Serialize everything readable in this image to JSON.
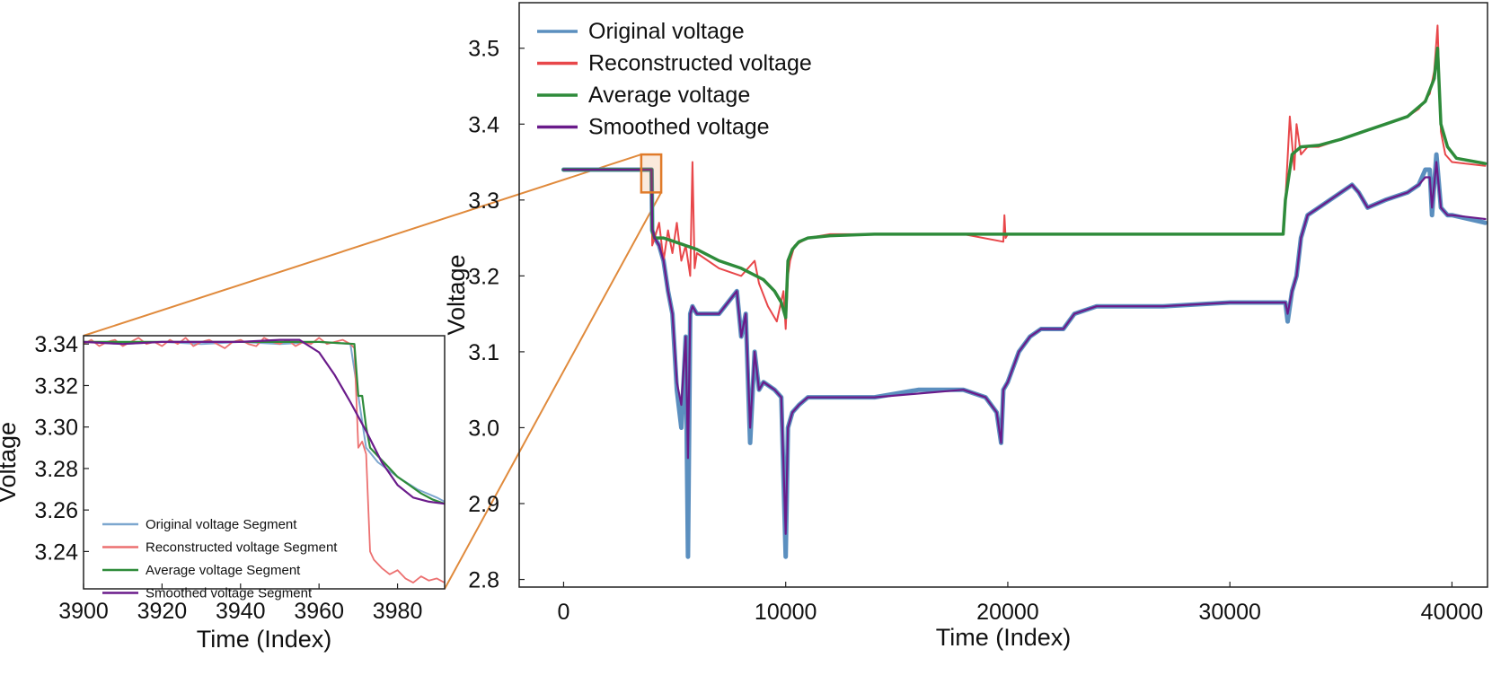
{
  "chart_data": [
    {
      "name": "main",
      "type": "line",
      "xlabel": "Time (Index)",
      "ylabel": "Voltage",
      "xlim": [
        -2000,
        41600
      ],
      "ylim": [
        2.79,
        3.56
      ],
      "xticks": [
        0,
        10000,
        20000,
        30000,
        40000
      ],
      "xtick_labels": [
        "0",
        "10000",
        "20000",
        "30000",
        "40000"
      ],
      "yticks": [
        2.8,
        2.9,
        3.0,
        3.1,
        3.2,
        3.3,
        3.4,
        3.5
      ],
      "ytick_labels": [
        "2.8",
        "2.9",
        "3.0",
        "3.1",
        "3.2",
        "3.3",
        "3.4",
        "3.5"
      ],
      "legend_position": "top-left",
      "highlight_region": {
        "x": [
          3900,
          3990
        ],
        "y": [
          3.31,
          3.36
        ]
      },
      "series": [
        {
          "name": "Original voltage",
          "color": "#5b8fbf",
          "x": [
            0,
            3900,
            3960,
            3990,
            4100,
            4300,
            4500,
            4700,
            4900,
            5100,
            5300,
            5500,
            5600,
            5700,
            5800,
            6000,
            7000,
            7800,
            8000,
            8200,
            8400,
            8600,
            8800,
            9000,
            9500,
            9800,
            10000,
            10100,
            10300,
            10600,
            11000,
            12000,
            14000,
            16000,
            18000,
            19000,
            19500,
            19700,
            19800,
            20000,
            20500,
            21000,
            21500,
            22500,
            23000,
            24000,
            25000,
            27000,
            30000,
            32500,
            32600,
            32800,
            33000,
            33200,
            33500,
            34000,
            35000,
            35500,
            35800,
            36200,
            37000,
            38000,
            38500,
            38800,
            39000,
            39100,
            39300,
            39500,
            39800,
            40000,
            41500
          ],
          "y": [
            3.34,
            3.34,
            3.34,
            3.26,
            3.25,
            3.24,
            3.22,
            3.18,
            3.15,
            3.05,
            3.0,
            3.12,
            2.83,
            3.15,
            3.16,
            3.15,
            3.15,
            3.18,
            3.12,
            3.15,
            2.98,
            3.1,
            3.05,
            3.06,
            3.05,
            3.04,
            2.83,
            3.0,
            3.02,
            3.03,
            3.04,
            3.04,
            3.04,
            3.05,
            3.05,
            3.04,
            3.02,
            2.98,
            3.05,
            3.06,
            3.1,
            3.12,
            3.13,
            3.13,
            3.15,
            3.16,
            3.16,
            3.16,
            3.165,
            3.165,
            3.14,
            3.18,
            3.2,
            3.25,
            3.28,
            3.29,
            3.31,
            3.32,
            3.31,
            3.29,
            3.3,
            3.31,
            3.32,
            3.34,
            3.34,
            3.28,
            3.36,
            3.29,
            3.28,
            3.28,
            3.27
          ]
        },
        {
          "name": "Reconstructed voltage",
          "color": "#e8474a",
          "x": [
            0,
            3900,
            3970,
            3990,
            4100,
            4300,
            4500,
            4700,
            4900,
            5100,
            5300,
            5500,
            5700,
            5800,
            5900,
            6000,
            7000,
            8000,
            8600,
            8800,
            9200,
            9600,
            9900,
            10000,
            10100,
            10200,
            10400,
            11000,
            12000,
            14000,
            16000,
            18000,
            19800,
            19850,
            19900,
            20000,
            22000,
            25000,
            30000,
            32400,
            32500,
            32700,
            32900,
            33000,
            33200,
            33500,
            34000,
            35000,
            36000,
            37000,
            38000,
            38500,
            39000,
            39200,
            39350,
            39500,
            39700,
            40000,
            41500
          ],
          "y": [
            3.34,
            3.34,
            3.34,
            3.24,
            3.25,
            3.27,
            3.22,
            3.26,
            3.23,
            3.27,
            3.22,
            3.24,
            3.2,
            3.35,
            3.21,
            3.23,
            3.21,
            3.2,
            3.22,
            3.19,
            3.16,
            3.14,
            3.18,
            3.13,
            3.2,
            3.22,
            3.24,
            3.25,
            3.255,
            3.255,
            3.255,
            3.255,
            3.245,
            3.28,
            3.25,
            3.255,
            3.255,
            3.255,
            3.255,
            3.255,
            3.3,
            3.41,
            3.34,
            3.4,
            3.36,
            3.37,
            3.37,
            3.38,
            3.39,
            3.4,
            3.41,
            3.42,
            3.44,
            3.47,
            3.53,
            3.39,
            3.36,
            3.35,
            3.345
          ]
        },
        {
          "name": "Average voltage",
          "color": "#2e8b3a",
          "x": [
            0,
            3900,
            3960,
            3990,
            4100,
            4500,
            5000,
            6000,
            7000,
            8000,
            9000,
            9500,
            9800,
            10000,
            10100,
            10300,
            10600,
            11000,
            12000,
            14000,
            16000,
            20000,
            25000,
            30000,
            32400,
            32500,
            32800,
            33200,
            34000,
            35000,
            36000,
            37000,
            38000,
            38800,
            39200,
            39350,
            39500,
            39800,
            40200,
            41500
          ],
          "y": [
            3.34,
            3.34,
            3.34,
            3.26,
            3.25,
            3.25,
            3.245,
            3.235,
            3.22,
            3.21,
            3.195,
            3.18,
            3.165,
            3.145,
            3.22,
            3.235,
            3.245,
            3.25,
            3.253,
            3.255,
            3.255,
            3.255,
            3.255,
            3.255,
            3.255,
            3.3,
            3.36,
            3.37,
            3.372,
            3.38,
            3.39,
            3.4,
            3.41,
            3.43,
            3.46,
            3.5,
            3.4,
            3.37,
            3.355,
            3.348
          ]
        },
        {
          "name": "Smoothed voltage",
          "color": "#6a1b8a",
          "x": [
            0,
            3900,
            3960,
            3990,
            4100,
            4300,
            4500,
            4700,
            4900,
            5100,
            5300,
            5500,
            5600,
            5700,
            5800,
            6000,
            7000,
            7800,
            8000,
            8200,
            8400,
            8600,
            8800,
            9000,
            9500,
            9800,
            10000,
            10100,
            10300,
            10600,
            11000,
            12000,
            14000,
            16000,
            18000,
            19000,
            19500,
            19700,
            19800,
            20000,
            20500,
            21000,
            21500,
            22500,
            23000,
            24000,
            25000,
            27000,
            30000,
            32500,
            32600,
            32800,
            33000,
            33200,
            33500,
            34000,
            35000,
            35500,
            35800,
            36200,
            37000,
            38000,
            38500,
            38800,
            39000,
            39100,
            39300,
            39500,
            39800,
            40000,
            41500
          ],
          "y": [
            3.34,
            3.34,
            3.34,
            3.262,
            3.25,
            3.24,
            3.22,
            3.18,
            3.15,
            3.06,
            3.03,
            3.12,
            2.96,
            3.15,
            3.16,
            3.15,
            3.15,
            3.18,
            3.12,
            3.15,
            3.0,
            3.1,
            3.05,
            3.06,
            3.05,
            3.04,
            2.86,
            3.0,
            3.02,
            3.03,
            3.04,
            3.04,
            3.04,
            3.045,
            3.05,
            3.04,
            3.02,
            2.98,
            3.05,
            3.06,
            3.1,
            3.12,
            3.13,
            3.13,
            3.15,
            3.16,
            3.16,
            3.16,
            3.165,
            3.165,
            3.15,
            3.18,
            3.2,
            3.25,
            3.28,
            3.29,
            3.31,
            3.32,
            3.31,
            3.29,
            3.3,
            3.31,
            3.32,
            3.33,
            3.33,
            3.29,
            3.35,
            3.29,
            3.28,
            3.28,
            3.275
          ]
        }
      ]
    },
    {
      "name": "inset",
      "type": "line",
      "xlabel": "Time (Index)",
      "ylabel": "Voltage",
      "xlim": [
        3900,
        3992
      ],
      "ylim": [
        3.222,
        3.344
      ],
      "xticks": [
        3900,
        3920,
        3940,
        3960,
        3980
      ],
      "xtick_labels": [
        "3900",
        "3920",
        "3940",
        "3960",
        "3980"
      ],
      "yticks": [
        3.24,
        3.26,
        3.28,
        3.3,
        3.32,
        3.34
      ],
      "ytick_labels": [
        "3.24",
        "3.26",
        "3.28",
        "3.30",
        "3.32",
        "3.34"
      ],
      "legend_position": "bottom-left",
      "series": [
        {
          "name": "Original voltage Segment",
          "color": "#7da7cf",
          "x": [
            3900,
            3910,
            3920,
            3930,
            3940,
            3950,
            3960,
            3968,
            3970,
            3972,
            3975,
            3980,
            3985,
            3990,
            3992
          ],
          "y": [
            3.341,
            3.34,
            3.341,
            3.34,
            3.341,
            3.34,
            3.341,
            3.34,
            3.315,
            3.29,
            3.283,
            3.276,
            3.27,
            3.266,
            3.264
          ]
        },
        {
          "name": "Reconstructed voltage Segment",
          "color": "#ec7070",
          "x": [
            3900,
            3902,
            3904,
            3906,
            3908,
            3910,
            3912,
            3914,
            3916,
            3918,
            3920,
            3922,
            3924,
            3926,
            3928,
            3930,
            3932,
            3934,
            3936,
            3938,
            3940,
            3942,
            3944,
            3946,
            3948,
            3950,
            3952,
            3954,
            3956,
            3958,
            3960,
            3962,
            3964,
            3966,
            3968,
            3969,
            3970,
            3971,
            3972,
            3973,
            3974,
            3976,
            3978,
            3980,
            3982,
            3984,
            3986,
            3988,
            3990,
            3992
          ],
          "y": [
            3.34,
            3.342,
            3.339,
            3.341,
            3.342,
            3.339,
            3.341,
            3.343,
            3.34,
            3.341,
            3.339,
            3.342,
            3.34,
            3.343,
            3.339,
            3.341,
            3.342,
            3.34,
            3.338,
            3.341,
            3.342,
            3.34,
            3.339,
            3.343,
            3.341,
            3.34,
            3.342,
            3.339,
            3.341,
            3.34,
            3.343,
            3.34,
            3.341,
            3.342,
            3.34,
            3.338,
            3.29,
            3.293,
            3.287,
            3.24,
            3.236,
            3.232,
            3.229,
            3.231,
            3.227,
            3.225,
            3.228,
            3.226,
            3.227,
            3.225
          ]
        },
        {
          "name": "Average voltage Segment",
          "color": "#2e8b3a",
          "x": [
            3900,
            3920,
            3940,
            3960,
            3969,
            3970,
            3971,
            3972,
            3973,
            3975,
            3977,
            3980,
            3983,
            3986,
            3989,
            3992
          ],
          "y": [
            3.341,
            3.341,
            3.341,
            3.341,
            3.34,
            3.315,
            3.315,
            3.3,
            3.29,
            3.286,
            3.282,
            3.276,
            3.272,
            3.268,
            3.265,
            3.263
          ]
        },
        {
          "name": "Smoothed voltage Segment",
          "color": "#6a1b8a",
          "x": [
            3900,
            3910,
            3920,
            3930,
            3940,
            3950,
            3955,
            3960,
            3964,
            3968,
            3972,
            3976,
            3980,
            3984,
            3988,
            3992
          ],
          "y": [
            3.341,
            3.34,
            3.341,
            3.341,
            3.341,
            3.342,
            3.342,
            3.336,
            3.325,
            3.312,
            3.298,
            3.283,
            3.272,
            3.266,
            3.264,
            3.263
          ]
        }
      ]
    }
  ]
}
